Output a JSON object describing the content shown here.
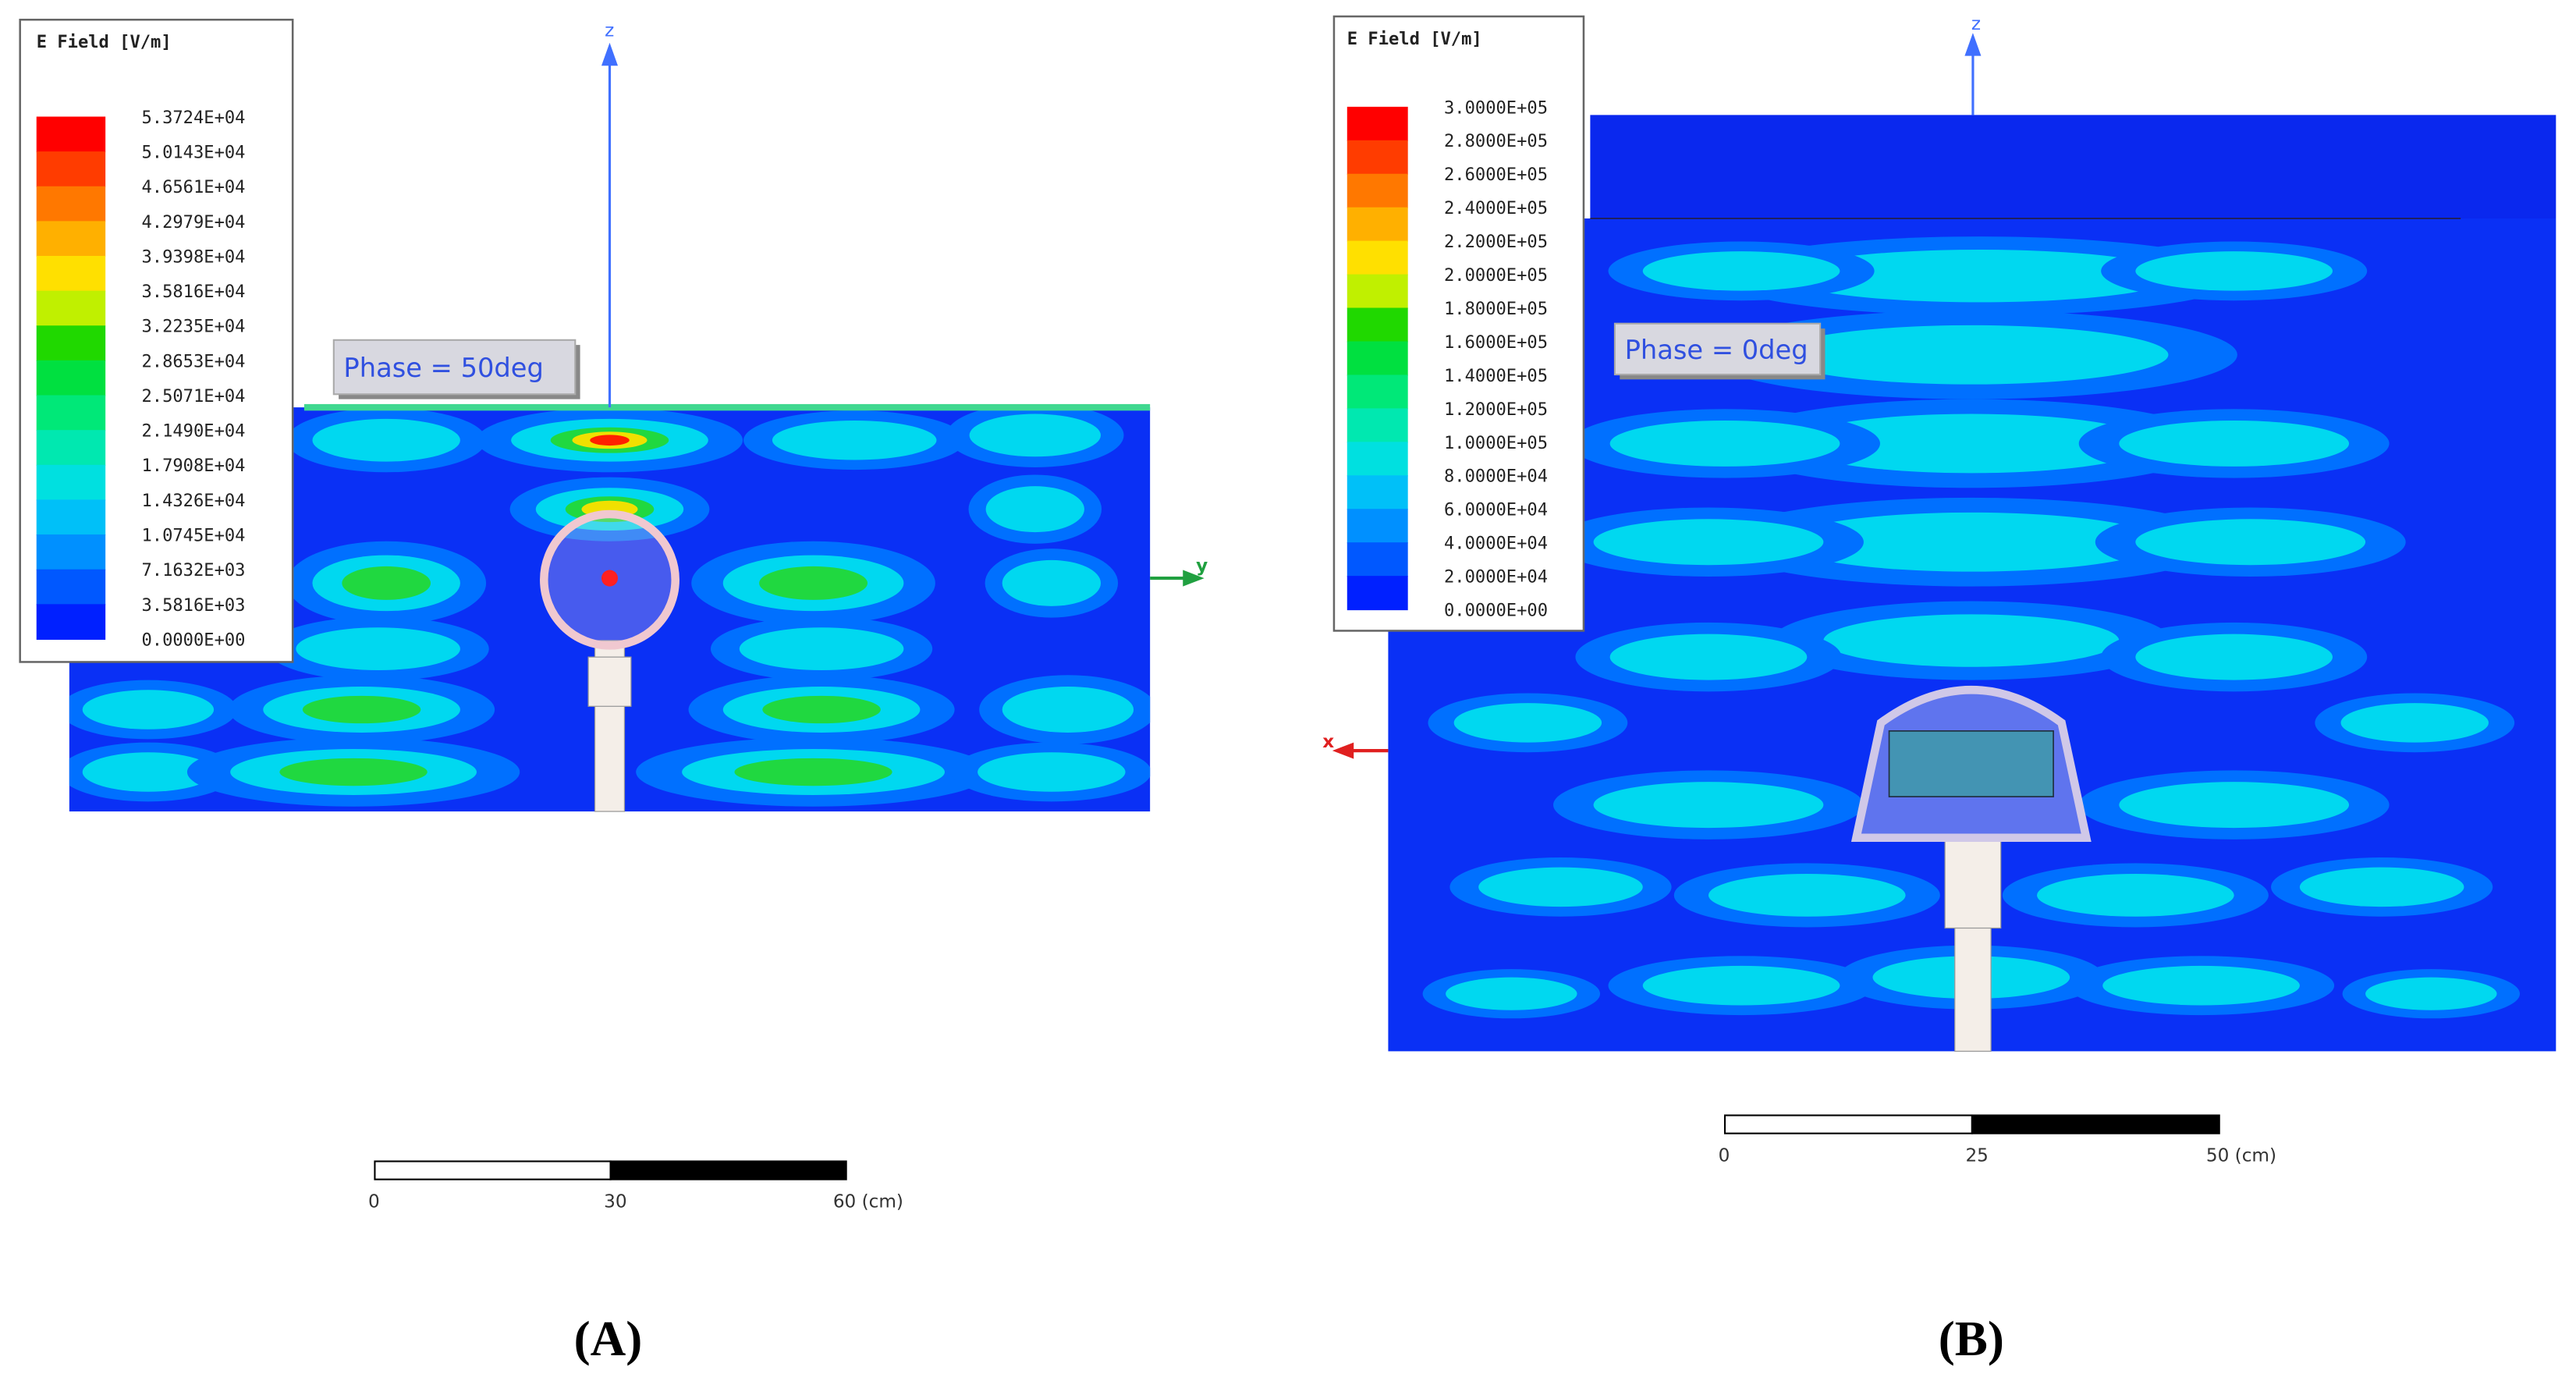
{
  "panels": [
    {
      "legend": {
        "title": "E Field [V/m]",
        "values": [
          "5.3724E+04",
          "5.0143E+04",
          "4.6561E+04",
          "4.2979E+04",
          "3.9398E+04",
          "3.5816E+04",
          "3.2235E+04",
          "2.8653E+04",
          "2.5071E+04",
          "2.1490E+04",
          "1.7908E+04",
          "1.4326E+04",
          "1.0745E+04",
          "7.1632E+03",
          "3.5816E+03",
          "0.0000E+00"
        ]
      },
      "phase": "Phase = 50deg",
      "axes": {
        "vertical": "z",
        "horizontal": "y"
      },
      "scale_bar": {
        "labels": [
          "0",
          "30",
          "60 (cm)"
        ]
      },
      "label": "(A)"
    },
    {
      "legend": {
        "title": "E Field [V/m]",
        "values": [
          "3.0000E+05",
          "2.8000E+05",
          "2.6000E+05",
          "2.4000E+05",
          "2.2000E+05",
          "2.0000E+05",
          "1.8000E+05",
          "1.6000E+05",
          "1.4000E+05",
          "1.2000E+05",
          "1.0000E+05",
          "8.0000E+04",
          "6.0000E+04",
          "4.0000E+04",
          "2.0000E+04",
          "0.0000E+00"
        ]
      },
      "phase": "Phase = 0deg",
      "axes": {
        "vertical": "z",
        "horizontal": "x"
      },
      "scale_bar": {
        "labels": [
          "0",
          "25",
          "50 (cm)"
        ]
      },
      "label": "(B)"
    }
  ]
}
